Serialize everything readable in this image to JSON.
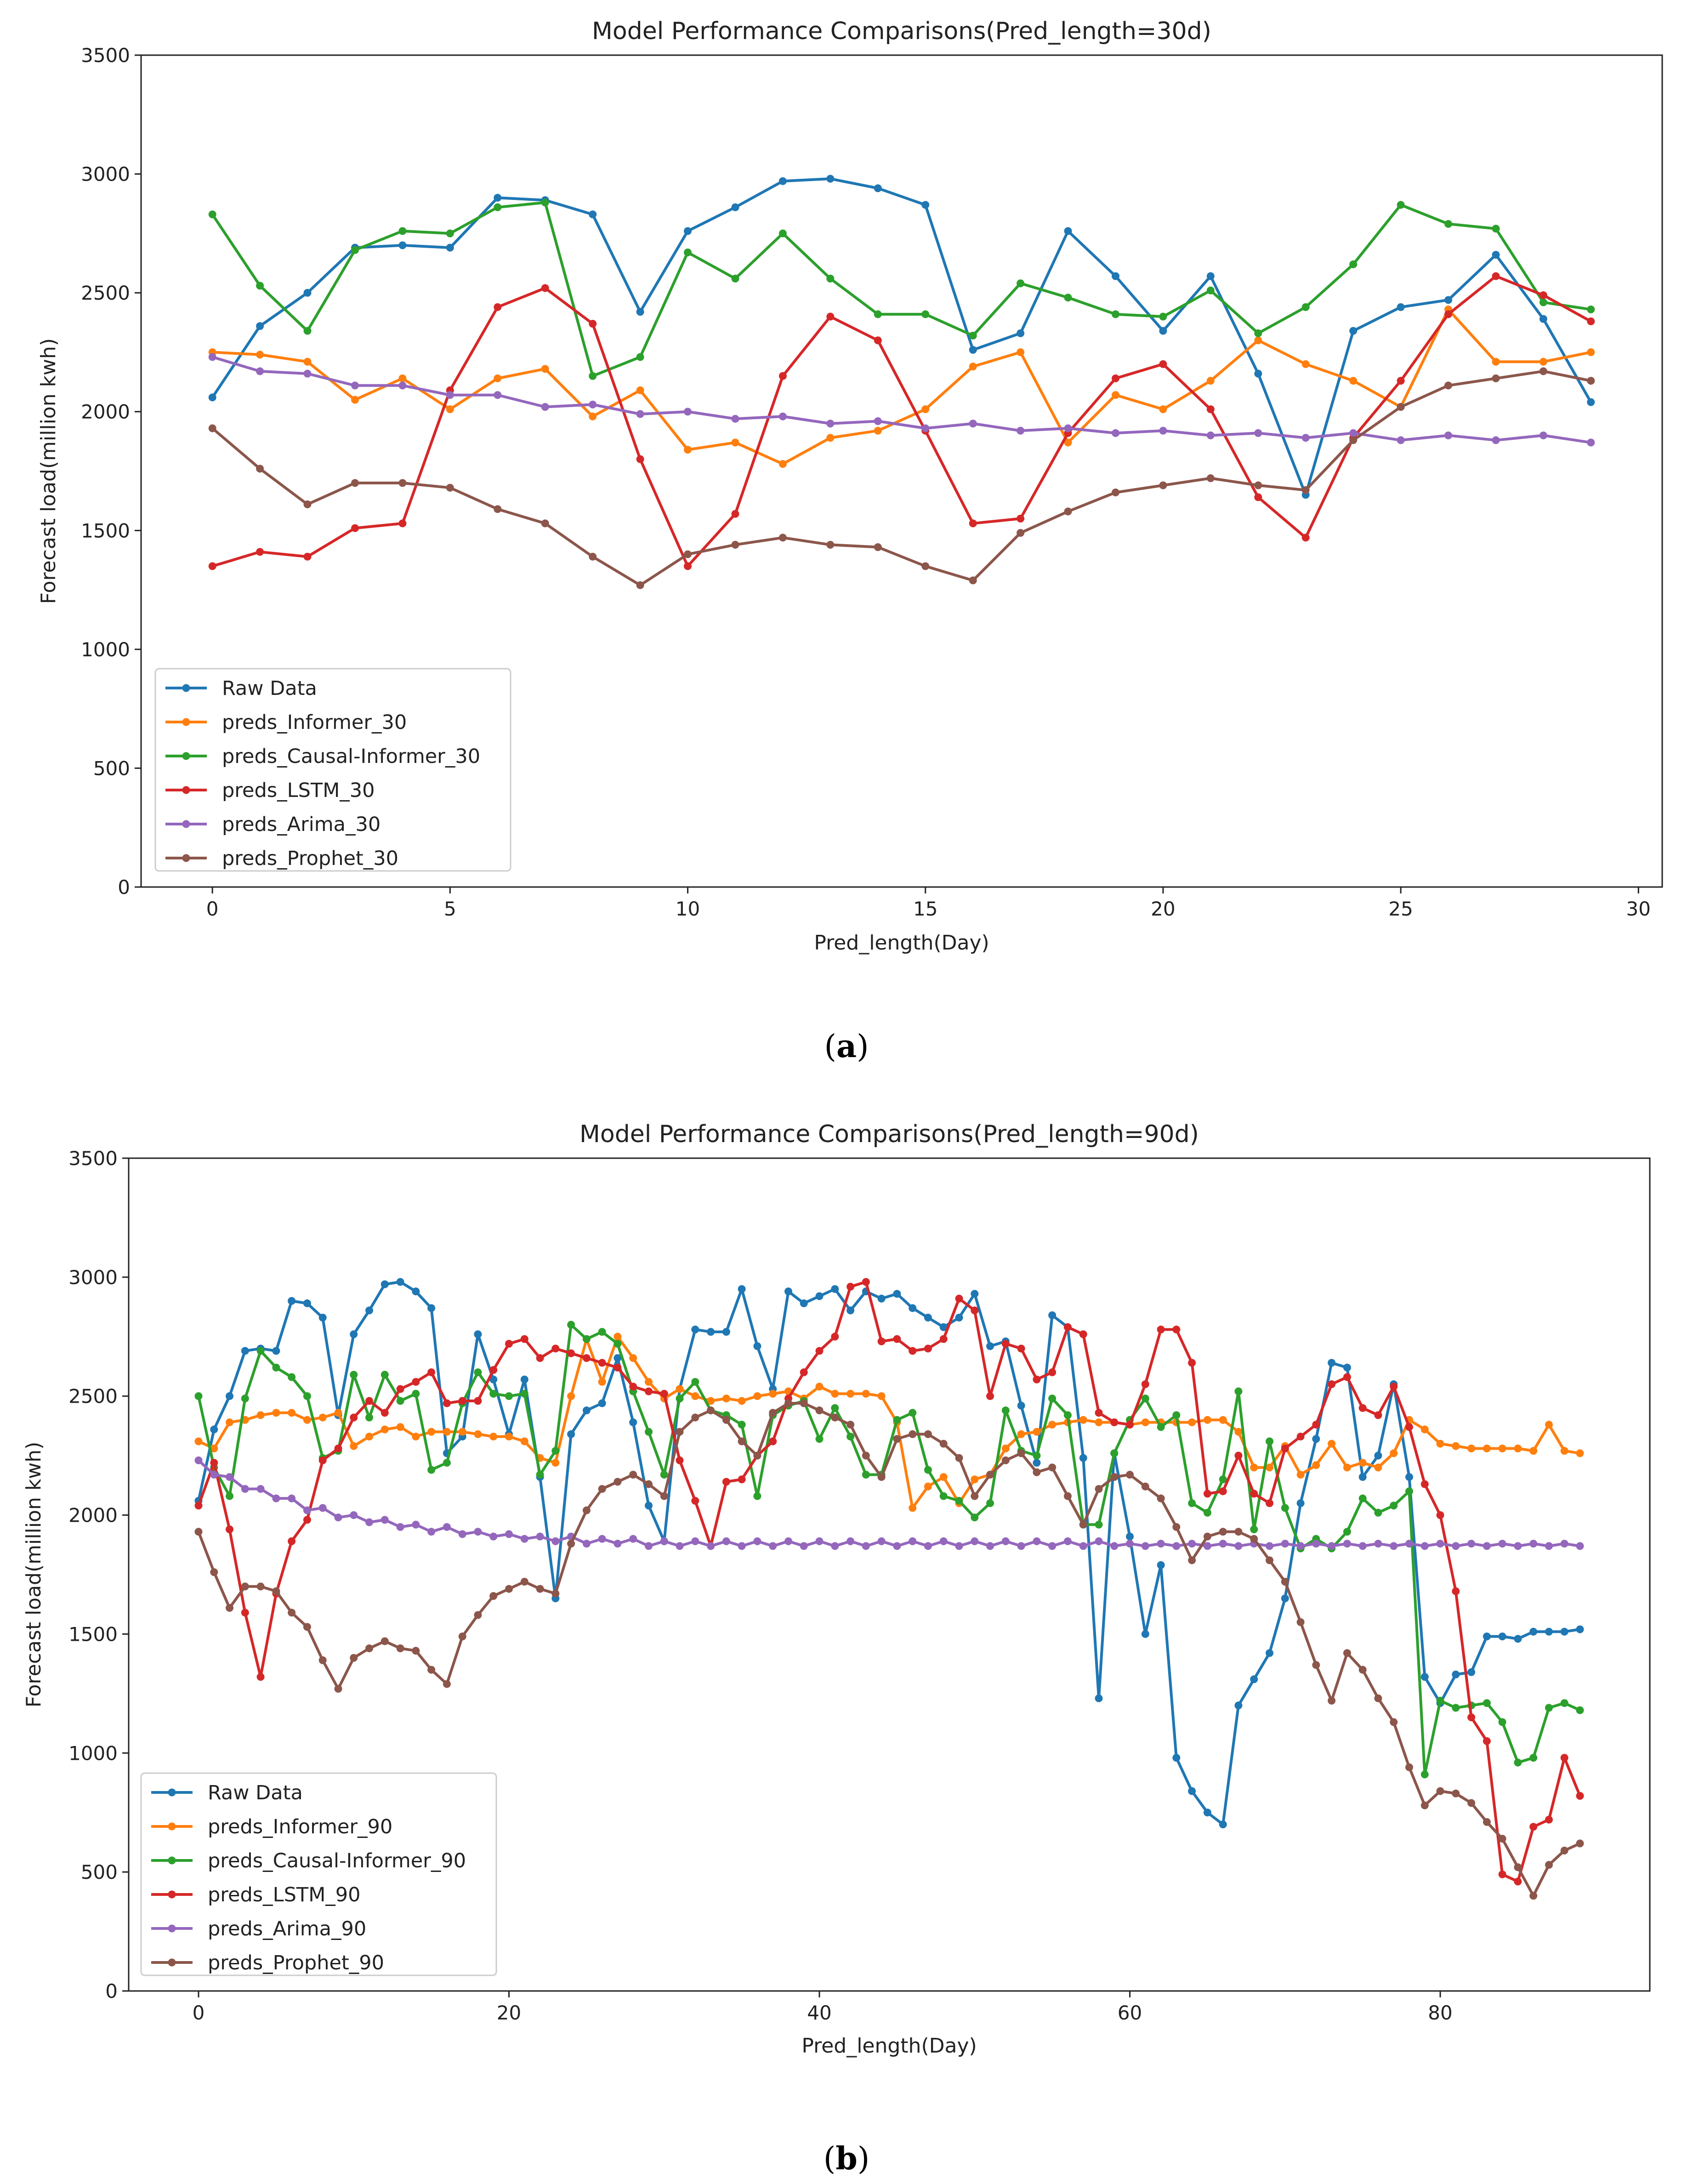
{
  "chart_data": [
    {
      "type": "line",
      "title": "Model Performance Comparisons(Pred_length=30d)",
      "xlabel": "Pred_length(Day)",
      "ylabel": "Forecast load(million kwh)",
      "xlim": [
        -1.5,
        30.5
      ],
      "ylim": [
        0,
        3500
      ],
      "xticks": [
        "0",
        "5",
        "10",
        "15",
        "20",
        "25",
        "30"
      ],
      "yticks": [
        "0",
        "500",
        "1000",
        "1500",
        "2000",
        "2500",
        "3000",
        "3500"
      ],
      "grid": false,
      "legend": "bottom-left",
      "panel_label": "a",
      "x": [
        0,
        1,
        2,
        3,
        4,
        5,
        6,
        7,
        8,
        9,
        10,
        11,
        12,
        13,
        14,
        15,
        16,
        17,
        18,
        19,
        20,
        21,
        22,
        23,
        24,
        25,
        26,
        27,
        28,
        29
      ],
      "series": [
        {
          "name": "Raw Data",
          "color": "#1f77b4",
          "values": [
            2060,
            2360,
            2500,
            2690,
            2700,
            2690,
            2900,
            2890,
            2830,
            2420,
            2760,
            2860,
            2970,
            2980,
            2940,
            2870,
            2260,
            2330,
            2760,
            2570,
            2340,
            2570,
            2160,
            1650,
            2340,
            2440,
            2470,
            2660,
            2390,
            2040
          ]
        },
        {
          "name": "preds_Informer_30",
          "color": "#ff7f0e",
          "values": [
            2250,
            2240,
            2210,
            2050,
            2140,
            2010,
            2140,
            2180,
            1980,
            2090,
            1840,
            1870,
            1780,
            1890,
            1920,
            2010,
            2190,
            2250,
            1870,
            2070,
            2010,
            2130,
            2300,
            2200,
            2130,
            2020,
            2430,
            2210,
            2210,
            2250
          ]
        },
        {
          "name": "preds_Causal-Informer_30",
          "color": "#2ca02c",
          "values": [
            2830,
            2530,
            2340,
            2680,
            2760,
            2750,
            2860,
            2880,
            2150,
            2230,
            2670,
            2560,
            2750,
            2560,
            2410,
            2410,
            2320,
            2540,
            2480,
            2410,
            2400,
            2510,
            2330,
            2440,
            2620,
            2870,
            2790,
            2770,
            2460,
            2430
          ]
        },
        {
          "name": "preds_LSTM_30",
          "color": "#d62728",
          "values": [
            1350,
            1410,
            1390,
            1510,
            1530,
            2090,
            2440,
            2520,
            2370,
            1800,
            1350,
            1570,
            2150,
            2400,
            2300,
            1920,
            1530,
            1550,
            1910,
            2140,
            2200,
            2010,
            1640,
            1470,
            1890,
            2130,
            2410,
            2570,
            2490,
            2380
          ]
        },
        {
          "name": "preds_Arima_30",
          "color": "#9467bd",
          "values": [
            2230,
            2170,
            2160,
            2110,
            2110,
            2070,
            2070,
            2020,
            2030,
            1990,
            2000,
            1970,
            1980,
            1950,
            1960,
            1930,
            1950,
            1920,
            1930,
            1910,
            1920,
            1900,
            1910,
            1890,
            1910,
            1880,
            1900,
            1880,
            1900,
            1870
          ]
        },
        {
          "name": "preds_Prophet_30",
          "color": "#8c564b",
          "values": [
            1930,
            1760,
            1610,
            1700,
            1700,
            1680,
            1590,
            1530,
            1390,
            1270,
            1400,
            1440,
            1470,
            1440,
            1430,
            1350,
            1290,
            1490,
            1580,
            1660,
            1690,
            1720,
            1690,
            1670,
            1880,
            2020,
            2110,
            2140,
            2170,
            2130
          ]
        }
      ]
    },
    {
      "type": "line",
      "title": "Model Performance Comparisons(Pred_length=90d)",
      "xlabel": "Pred_length(Day)",
      "ylabel": "Forecast load(million kwh)",
      "xlim": [
        -4.5,
        93.5
      ],
      "ylim": [
        0,
        3500
      ],
      "xticks": [
        "0",
        "20",
        "40",
        "60",
        "80"
      ],
      "yticks": [
        "0",
        "500",
        "1000",
        "1500",
        "2000",
        "2500",
        "3000",
        "3500"
      ],
      "grid": false,
      "legend": "bottom-left",
      "panel_label": "b",
      "x": [
        0,
        1,
        2,
        3,
        4,
        5,
        6,
        7,
        8,
        9,
        10,
        11,
        12,
        13,
        14,
        15,
        16,
        17,
        18,
        19,
        20,
        21,
        22,
        23,
        24,
        25,
        26,
        27,
        28,
        29,
        30,
        31,
        32,
        33,
        34,
        35,
        36,
        37,
        38,
        39,
        40,
        41,
        42,
        43,
        44,
        45,
        46,
        47,
        48,
        49,
        50,
        51,
        52,
        53,
        54,
        55,
        56,
        57,
        58,
        59,
        60,
        61,
        62,
        63,
        64,
        65,
        66,
        67,
        68,
        69,
        70,
        71,
        72,
        73,
        74,
        75,
        76,
        77,
        78,
        79,
        80,
        81,
        82,
        83,
        84,
        85,
        86,
        87,
        88,
        89
      ],
      "series": [
        {
          "name": "Raw Data",
          "color": "#1f77b4",
          "values": [
            2060,
            2360,
            2500,
            2690,
            2700,
            2690,
            2900,
            2890,
            2830,
            2420,
            2760,
            2860,
            2970,
            2980,
            2940,
            2870,
            2260,
            2330,
            2760,
            2570,
            2340,
            2570,
            2160,
            1650,
            2340,
            2440,
            2470,
            2660,
            2390,
            2040,
            1890,
            2530,
            2780,
            2770,
            2770,
            2950,
            2710,
            2530,
            2940,
            2890,
            2920,
            2950,
            2860,
            2940,
            2910,
            2930,
            2870,
            2830,
            2790,
            2830,
            2930,
            2710,
            2730,
            2460,
            2220,
            2840,
            2790,
            2240,
            1230,
            2260,
            1910,
            1500,
            1790,
            980,
            840,
            750,
            700,
            1200,
            1310,
            1420,
            1650,
            2050,
            2320,
            2640,
            2620,
            2160,
            2250,
            2550,
            2160,
            1320,
            1210,
            1330,
            1340,
            1490,
            1490,
            1480,
            1510,
            1510,
            1510,
            1520
          ]
        },
        {
          "name": "preds_Informer_90",
          "color": "#ff7f0e",
          "values": [
            2310,
            2280,
            2390,
            2400,
            2420,
            2430,
            2430,
            2400,
            2410,
            2430,
            2290,
            2330,
            2360,
            2370,
            2330,
            2350,
            2350,
            2350,
            2340,
            2330,
            2330,
            2310,
            2240,
            2220,
            2500,
            2740,
            2560,
            2750,
            2660,
            2560,
            2490,
            2530,
            2500,
            2480,
            2490,
            2480,
            2500,
            2510,
            2520,
            2490,
            2540,
            2510,
            2510,
            2510,
            2500,
            2390,
            2030,
            2120,
            2160,
            2050,
            2150,
            2170,
            2280,
            2340,
            2350,
            2380,
            2390,
            2400,
            2390,
            2390,
            2380,
            2390,
            2390,
            2390,
            2390,
            2400,
            2400,
            2350,
            2200,
            2200,
            2290,
            2170,
            2210,
            2300,
            2200,
            2220,
            2200,
            2260,
            2400,
            2360,
            2300,
            2290,
            2280,
            2280,
            2280,
            2280,
            2270,
            2380,
            2270,
            2260
          ]
        },
        {
          "name": "preds_Causal-Informer_90",
          "color": "#2ca02c",
          "values": [
            2500,
            2200,
            2080,
            2490,
            2690,
            2620,
            2580,
            2500,
            2240,
            2270,
            2590,
            2410,
            2590,
            2480,
            2510,
            2190,
            2220,
            2470,
            2600,
            2510,
            2500,
            2510,
            2170,
            2270,
            2800,
            2740,
            2770,
            2720,
            2520,
            2350,
            2170,
            2490,
            2560,
            2440,
            2420,
            2380,
            2080,
            2420,
            2460,
            2480,
            2320,
            2450,
            2330,
            2170,
            2170,
            2400,
            2430,
            2190,
            2080,
            2060,
            1990,
            2050,
            2440,
            2270,
            2250,
            2490,
            2420,
            1960,
            1960,
            2260,
            2400,
            2490,
            2370,
            2420,
            2050,
            2010,
            2150,
            2520,
            1940,
            2310,
            2030,
            1860,
            1900,
            1860,
            1930,
            2070,
            2010,
            2040,
            2100,
            910,
            1220,
            1190,
            1200,
            1210,
            1130,
            960,
            980,
            1190,
            1210,
            1180
          ]
        },
        {
          "name": "preds_LSTM_90",
          "color": "#d62728",
          "values": [
            2040,
            2220,
            1940,
            1590,
            1320,
            1670,
            1890,
            1980,
            2230,
            2280,
            2410,
            2480,
            2430,
            2530,
            2560,
            2600,
            2470,
            2480,
            2480,
            2610,
            2720,
            2740,
            2660,
            2700,
            2680,
            2660,
            2640,
            2620,
            2540,
            2520,
            2510,
            2230,
            2060,
            1870,
            2140,
            2150,
            2250,
            2310,
            2490,
            2600,
            2690,
            2750,
            2960,
            2980,
            2730,
            2740,
            2690,
            2700,
            2740,
            2910,
            2860,
            2500,
            2720,
            2700,
            2570,
            2600,
            2790,
            2760,
            2430,
            2390,
            2380,
            2550,
            2780,
            2780,
            2640,
            2090,
            2100,
            2250,
            2090,
            2050,
            2280,
            2330,
            2380,
            2550,
            2580,
            2450,
            2420,
            2540,
            2370,
            2130,
            2000,
            1680,
            1150,
            1050,
            490,
            460,
            690,
            720,
            980,
            820
          ]
        },
        {
          "name": "preds_Arima_90",
          "color": "#9467bd",
          "values": [
            2230,
            2170,
            2160,
            2110,
            2110,
            2070,
            2070,
            2020,
            2030,
            1990,
            2000,
            1970,
            1980,
            1950,
            1960,
            1930,
            1950,
            1920,
            1930,
            1910,
            1920,
            1900,
            1910,
            1890,
            1910,
            1880,
            1900,
            1880,
            1900,
            1870,
            1890,
            1870,
            1890,
            1870,
            1890,
            1870,
            1890,
            1870,
            1890,
            1870,
            1890,
            1870,
            1890,
            1870,
            1890,
            1870,
            1890,
            1870,
            1890,
            1870,
            1890,
            1870,
            1890,
            1870,
            1890,
            1870,
            1890,
            1870,
            1890,
            1870,
            1880,
            1870,
            1880,
            1870,
            1880,
            1870,
            1880,
            1870,
            1880,
            1870,
            1880,
            1870,
            1880,
            1870,
            1880,
            1870,
            1880,
            1870,
            1880,
            1870,
            1880,
            1870,
            1880,
            1870,
            1880,
            1870,
            1880,
            1870,
            1880,
            1870
          ]
        },
        {
          "name": "preds_Prophet_90",
          "color": "#8c564b",
          "values": [
            1930,
            1760,
            1610,
            1700,
            1700,
            1680,
            1590,
            1530,
            1390,
            1270,
            1400,
            1440,
            1470,
            1440,
            1430,
            1350,
            1290,
            1490,
            1580,
            1660,
            1690,
            1720,
            1690,
            1670,
            1880,
            2020,
            2110,
            2140,
            2170,
            2130,
            2080,
            2350,
            2410,
            2440,
            2400,
            2310,
            2250,
            2430,
            2470,
            2470,
            2440,
            2410,
            2380,
            2250,
            2160,
            2320,
            2340,
            2340,
            2300,
            2240,
            2080,
            2170,
            2230,
            2260,
            2180,
            2200,
            2080,
            1960,
            2110,
            2160,
            2170,
            2120,
            2070,
            1950,
            1810,
            1910,
            1930,
            1930,
            1900,
            1810,
            1720,
            1550,
            1370,
            1220,
            1420,
            1350,
            1230,
            1130,
            940,
            780,
            840,
            830,
            790,
            710,
            640,
            520,
            400,
            530,
            590,
            620
          ]
        }
      ]
    }
  ]
}
